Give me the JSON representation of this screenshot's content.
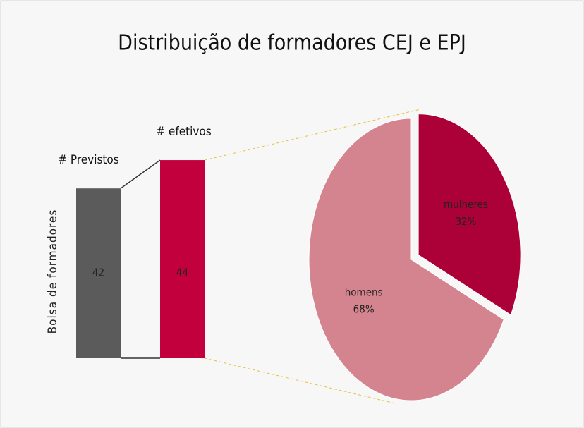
{
  "chart_data": [
    {
      "type": "bar",
      "title": "Distribuição de formadores CEJ e EPJ",
      "ylabel": "Bolsa de formadores",
      "categories": [
        "# Previstos",
        "# efetivos"
      ],
      "values": [
        42,
        44
      ],
      "colors": [
        "#5b5b5b",
        "#c2003d"
      ],
      "ylim": [
        30,
        45
      ]
    },
    {
      "type": "pie",
      "categories": [
        "mulheres",
        "homens"
      ],
      "values": [
        32,
        68
      ],
      "value_labels": [
        "32%",
        "68%"
      ],
      "colors": [
        "#ab0038",
        "#d4848f"
      ]
    }
  ]
}
